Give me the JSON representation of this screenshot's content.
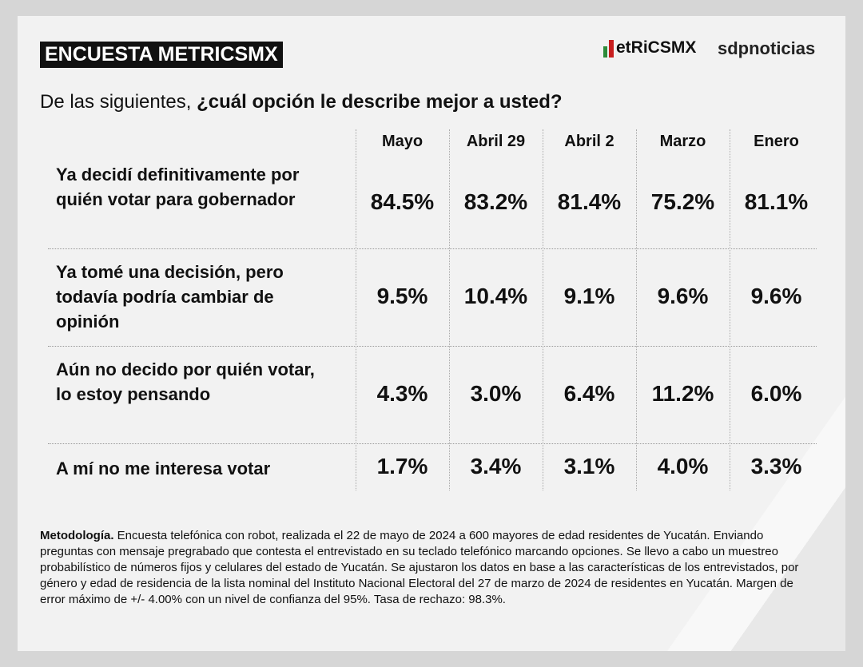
{
  "brand_title": "ENCUESTA METRICSMX",
  "logos": {
    "metrics": "etRiCSMX",
    "sdp": "sdpnoticias"
  },
  "question": {
    "plain": "De las siguientes, ",
    "bold": "¿cuál opción le describe mejor a usted?"
  },
  "columns": [
    "Mayo",
    "Abril 29",
    "Abril 2",
    "Marzo",
    "Enero"
  ],
  "rows": [
    {
      "label": "Ya decidí definitivamente por quién votar para gobernador",
      "values": [
        "84.5%",
        "83.2%",
        "81.4%",
        "75.2%",
        "81.1%"
      ]
    },
    {
      "label": "Ya tomé una decisión, pero todavía podría cambiar de opinión",
      "values": [
        "9.5%",
        "10.4%",
        "9.1%",
        "9.6%",
        "9.6%"
      ]
    },
    {
      "label": "Aún no decido por quién votar, lo estoy pensando",
      "values": [
        "4.3%",
        "3.0%",
        "6.4%",
        "11.2%",
        "6.0%"
      ]
    },
    {
      "label": "A mí no me interesa votar",
      "values": [
        "1.7%",
        "3.4%",
        "3.1%",
        "4.0%",
        "3.3%"
      ]
    }
  ],
  "methodology": {
    "title": "Metodología.",
    "text": " Encuesta telefónica con robot, realizada el 22 de mayo de 2024 a 600 mayores de edad residentes de Yucatán. Enviando preguntas con mensaje pregrabado que contesta el entrevistado en su teclado telefónico marcando opciones. Se llevo a cabo un muestreo probabilístico de números fijos y celulares del estado de Yucatán. Se ajustaron los datos en base a las características de los entrevistados, por género y edad de residencia de la lista nominal del Instituto Nacional Electoral del 27 de marzo de 2024 de residentes en Yucatán. Margen de error máximo de +/- 4.00% con un nivel de confianza del 95%. Tasa de rechazo: 98.3%."
  }
}
